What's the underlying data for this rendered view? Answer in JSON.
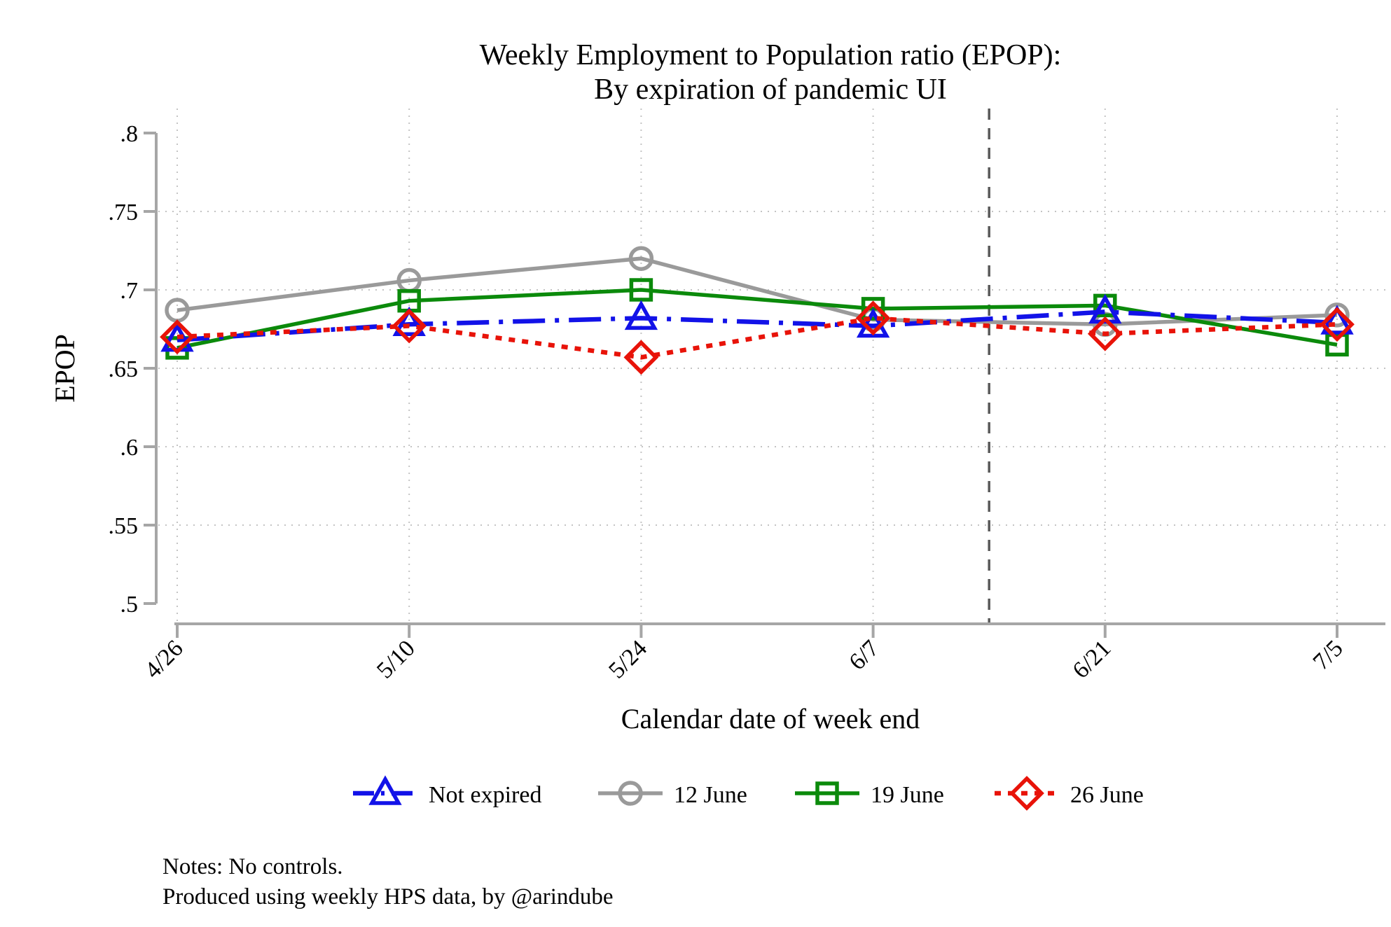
{
  "title": {
    "line1": "Weekly Employment to Population ratio (EPOP):",
    "line2": "By expiration of pandemic UI"
  },
  "notes": {
    "line1": "Notes: No controls.",
    "line2": "Produced using weekly HPS data, by @arindube"
  },
  "chart_data": {
    "type": "line",
    "title": "Weekly Employment to Population ratio (EPOP): By expiration of pandemic UI",
    "xlabel": "Calendar date of week end",
    "ylabel": "EPOP",
    "categories": [
      "4/26",
      "5/10",
      "5/24",
      "6/7",
      "6/21",
      "7/5"
    ],
    "y_ticks": [
      0.5,
      0.55,
      0.6,
      0.65,
      0.7,
      0.75,
      0.8
    ],
    "y_tick_labels": [
      ".5",
      ".55",
      ".6",
      ".65",
      ".7",
      ".75",
      ".8"
    ],
    "ylim": [
      0.5,
      0.8
    ],
    "grid": true,
    "legend_position": "bottom",
    "reference_line": {
      "type": "vertical-dashed",
      "between_categories": [
        "6/7",
        "6/21"
      ],
      "position_index": 3.5,
      "color": "#5a5a5a"
    },
    "series": [
      {
        "name": "Not expired",
        "color": "#1212e8",
        "marker": "triangle",
        "line_style": "dash-dot",
        "values": [
          0.668,
          0.678,
          0.682,
          0.677,
          0.686,
          0.679
        ]
      },
      {
        "name": "12 June",
        "color": "#9a9a9a",
        "marker": "circle",
        "line_style": "solid",
        "values": [
          0.687,
          0.706,
          0.72,
          0.681,
          0.678,
          0.684
        ]
      },
      {
        "name": "19 June",
        "color": "#0b8a0b",
        "marker": "square",
        "line_style": "solid",
        "values": [
          0.663,
          0.693,
          0.7,
          0.688,
          0.69,
          0.665
        ]
      },
      {
        "name": "26 June",
        "color": "#e81309",
        "marker": "diamond",
        "line_style": "dotted",
        "values": [
          0.67,
          0.677,
          0.657,
          0.682,
          0.672,
          0.678
        ]
      }
    ],
    "colors": {
      "grid": "#c4c4c4",
      "axis": "#a6a6a6",
      "background": "#ffffff"
    }
  }
}
